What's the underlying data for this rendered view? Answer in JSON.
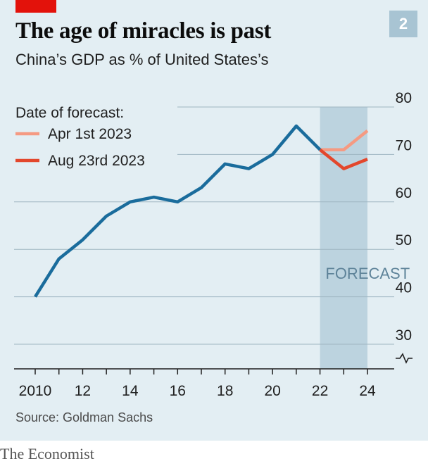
{
  "header": {
    "title": "The age of miracles is past",
    "subtitle": "China’s GDP as % of United States’s",
    "chart_number": "2"
  },
  "footer": {
    "source": "Source: Goldman Sachs",
    "brand": "The Economist"
  },
  "colors": {
    "background": "#e3eef3",
    "main_line": "#1a6c9c",
    "apr_forecast": "#f59a82",
    "aug_forecast": "#e3472c",
    "forecast_shade": "#bcd3df",
    "red_tag": "#e3120b"
  },
  "chart_data": {
    "type": "line",
    "title": "The age of miracles is past",
    "subtitle": "China’s GDP as % of United States’s",
    "xlabel": "",
    "ylabel": "",
    "xlim": [
      2010,
      2024
    ],
    "ylim": [
      30,
      80
    ],
    "y_axis_side": "right",
    "y_axis_break": true,
    "grid": true,
    "x_ticks": [
      2010,
      2012,
      2014,
      2016,
      2018,
      2020,
      2022,
      2024
    ],
    "x_tick_labels": [
      "2010",
      "12",
      "14",
      "16",
      "18",
      "20",
      "22",
      "24"
    ],
    "y_ticks": [
      30,
      40,
      50,
      60,
      70,
      80
    ],
    "y_tick_labels": [
      "30",
      "40",
      "50",
      "60",
      "70",
      "80"
    ],
    "legend": {
      "title": "Date of forecast:",
      "placement": "top-left",
      "entries": [
        "Apr 1st 2023",
        "Aug 23rd 2023"
      ]
    },
    "shaded_region": {
      "x": [
        2022,
        2024
      ],
      "label": "FORECAST"
    },
    "series": [
      {
        "role": "historical",
        "x": [
          2010,
          2011,
          2012,
          2013,
          2014,
          2015,
          2016,
          2017,
          2018,
          2019,
          2020,
          2021,
          2022
        ],
        "y": [
          40,
          48,
          52,
          57,
          60,
          61,
          60,
          63,
          68,
          67,
          70,
          76,
          71
        ]
      },
      {
        "name": "Apr 1st 2023",
        "x": [
          2022,
          2023,
          2024
        ],
        "y": [
          71,
          71,
          75
        ]
      },
      {
        "name": "Aug 23rd 2023",
        "x": [
          2022,
          2023,
          2024
        ],
        "y": [
          71,
          67,
          69
        ]
      }
    ]
  }
}
